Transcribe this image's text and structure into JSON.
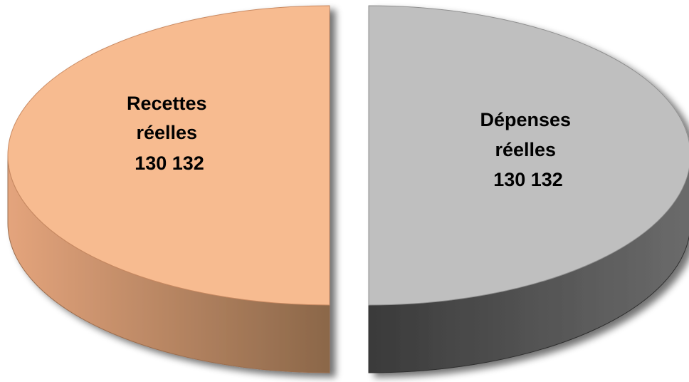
{
  "chart_data": {
    "type": "pie",
    "style": "3d-exploded-halves",
    "slices": [
      {
        "label_lines": [
          "Recettes",
          "réelles",
          "130 132"
        ],
        "value": 130132,
        "color_top": "#f7bb90",
        "color_side_light": "#e4a47c",
        "color_side_dark": "#8b6749"
      },
      {
        "label_lines": [
          "Dépenses",
          "réelles",
          "130 132"
        ],
        "value": 130132,
        "color_top": "#bfbfbf",
        "color_side_light": "#6b6b6b",
        "color_side_dark": "#3a3a3a"
      }
    ],
    "legend": "none",
    "grid": false
  }
}
